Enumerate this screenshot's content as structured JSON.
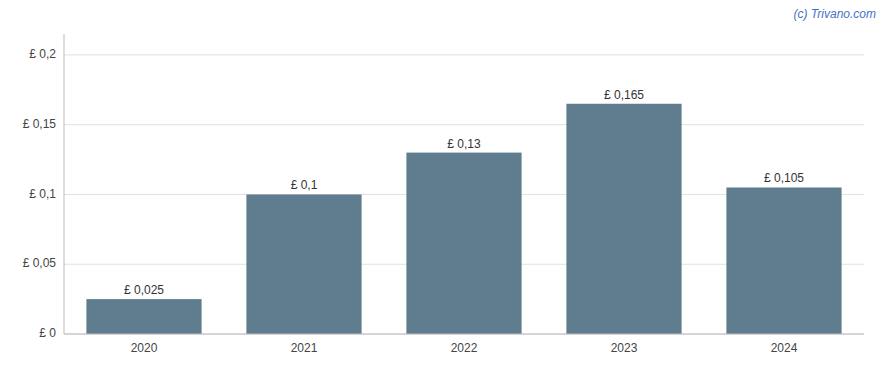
{
  "chart_data": {
    "type": "bar",
    "categories": [
      "2020",
      "2021",
      "2022",
      "2023",
      "2024"
    ],
    "values": [
      0.025,
      0.1,
      0.13,
      0.165,
      0.105
    ],
    "value_labels": [
      "£ 0,025",
      "£ 0,1",
      "£ 0,13",
      "£ 0,165",
      "£ 0,105"
    ],
    "color": "#5f7d8e",
    "ylim": [
      0,
      0.215
    ],
    "yticks": [
      {
        "value": 0,
        "label": "£ 0"
      },
      {
        "value": 0.05,
        "label": "£ 0,05"
      },
      {
        "value": 0.1,
        "label": "£ 0,1"
      },
      {
        "value": 0.15,
        "label": "£ 0,15"
      },
      {
        "value": 0.2,
        "label": "£ 0,2"
      }
    ],
    "grid": true,
    "data_labels": true,
    "annotations": [
      "(c) Trivano.com"
    ]
  }
}
